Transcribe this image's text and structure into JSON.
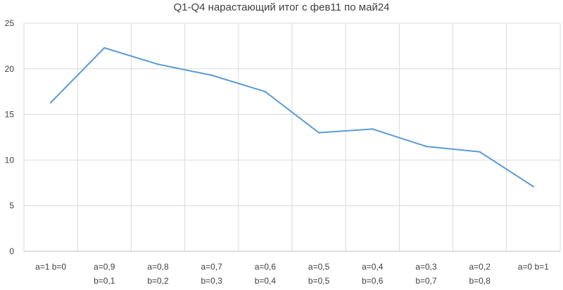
{
  "chart_data": {
    "type": "line",
    "title": "Q1-Q4 нарастающий итог с фев11 по май24",
    "xlabel": "",
    "ylabel": "",
    "categories": [
      [
        "a=1 b=0"
      ],
      [
        "a=0,9",
        "b=0,1"
      ],
      [
        "a=0,8",
        "b=0,2"
      ],
      [
        "a=0,7",
        "b=0,3"
      ],
      [
        "a=0,6",
        "b=0,4"
      ],
      [
        "a=0,5",
        "b=0,5"
      ],
      [
        "a=0,4",
        "b=0,6"
      ],
      [
        "a=0,3",
        "b=0,7"
      ],
      [
        "a=0,2",
        "b=0,8"
      ],
      [
        "a=0 b=1"
      ]
    ],
    "series": [
      {
        "name": "",
        "color": "#5b9bd5",
        "values": [
          16.3,
          22.3,
          20.5,
          19.3,
          17.5,
          13.0,
          13.4,
          11.5,
          10.9,
          7.1
        ]
      }
    ],
    "ylim": [
      0,
      25
    ],
    "yticks": [
      "0",
      "5",
      "10",
      "15",
      "20",
      "25"
    ],
    "grid": true,
    "legend": "none"
  }
}
